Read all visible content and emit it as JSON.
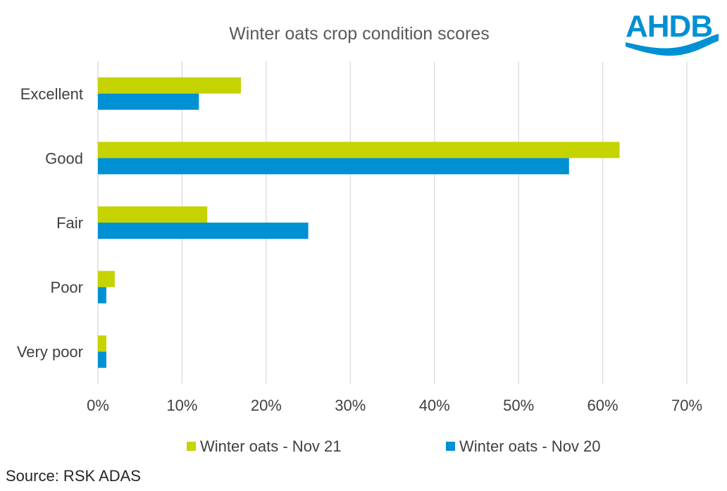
{
  "chart_data": {
    "type": "bar",
    "orientation": "horizontal",
    "title": "Winter oats crop condition scores",
    "categories": [
      "Excellent",
      "Good",
      "Fair",
      "Poor",
      "Very poor"
    ],
    "series": [
      {
        "name": "Winter oats - Nov 21",
        "color": "#c5d300",
        "values": [
          17,
          62,
          13,
          2,
          1
        ]
      },
      {
        "name": "Winter oats - Nov 20",
        "color": "#0090d4",
        "values": [
          12,
          56,
          25,
          1,
          1
        ]
      }
    ],
    "xlim": [
      0,
      70
    ],
    "xticks": [
      0,
      10,
      20,
      30,
      40,
      50,
      60,
      70
    ],
    "xtick_labels": [
      "0%",
      "10%",
      "20%",
      "30%",
      "40%",
      "50%",
      "60%",
      "70%"
    ],
    "xlabel": "",
    "ylabel": "",
    "grid": true,
    "legend_position": "bottom"
  },
  "source": "Source: RSK ADAS",
  "logo": {
    "text": "AHDB",
    "color": "#0090d4"
  }
}
